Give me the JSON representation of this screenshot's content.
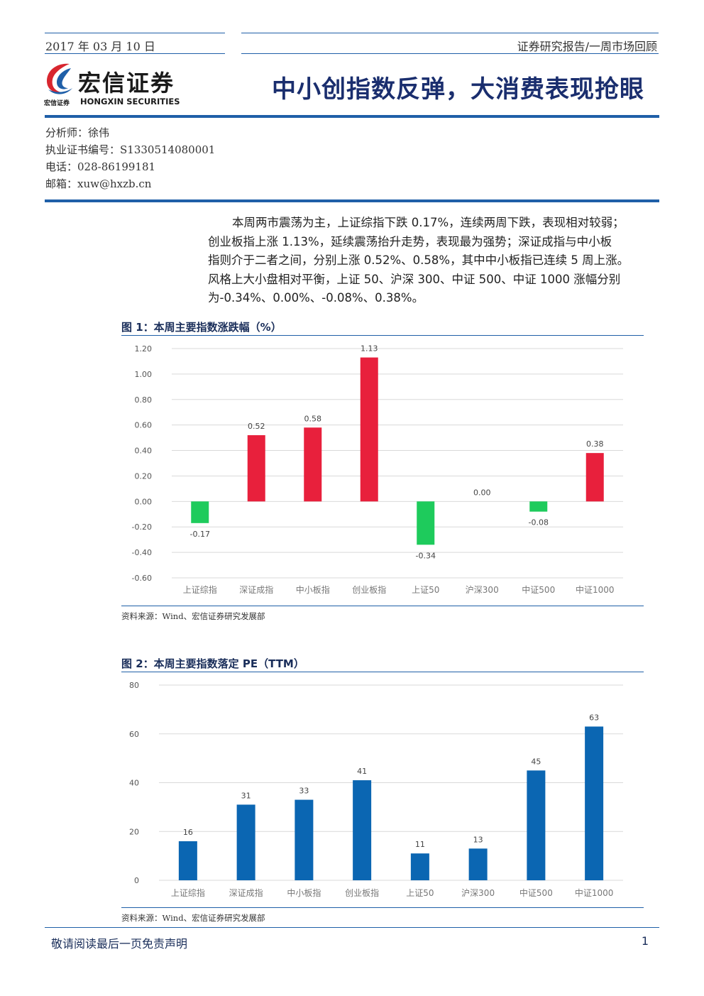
{
  "header": {
    "date": "2017 年 03 月 10 日",
    "report_type": "证券研究报告/一周市场回顾",
    "company_cn": "宏信证券",
    "company_en": "HONGXIN SECURITIES",
    "company_small": "宏信证券",
    "title": "中小创指数反弹，大消费表现抢眼"
  },
  "analyst": {
    "name": "分析师：徐伟",
    "license": "执业证书编号：S1330514080001",
    "phone": "电话：028-86199181",
    "email": "邮箱：xuw@hxzb.cn"
  },
  "summary_lines": [
    "本周两市震荡为主，上证综指下跌 0.17%，连续两周下跌，表现相对较弱；",
    "创业板指上涨 1.13%，延续震荡抬升走势，表现最为强势；深证成指与中小板",
    "指则介于二者之间，分别上涨 0.52%、0.58%，其中中小板指已连续 5 周上涨。",
    "风格上大小盘相对平衡，上证 50、沪深 300、中证 500、中证 1000 涨幅分别",
    "为-0.34%、0.00%、-0.08%、0.38%。"
  ],
  "figure1": {
    "title": "图 1：本周主要指数涨跌幅（%）",
    "source": "资料来源：Wind、宏信证券研究发展部"
  },
  "figure2": {
    "title": "图 2：本周主要指数落定 PE（TTM）",
    "source": "资料来源：Wind、宏信证券研究发展部"
  },
  "footer": {
    "disclaimer": "敬请阅读最后一页免责声明",
    "page": "1"
  },
  "colors": {
    "accent": "#1f5fa8",
    "positive": "#e8203c",
    "negative": "#1ecb5c",
    "pe_bar": "#0b66b2"
  },
  "chart_data": [
    {
      "type": "bar",
      "categories": [
        "上证综指",
        "深证成指",
        "中小板指",
        "创业板指",
        "上证50",
        "沪深300",
        "中证500",
        "中证1000"
      ],
      "values": [
        -0.17,
        0.52,
        0.58,
        1.13,
        -0.34,
        0.0,
        -0.08,
        0.38
      ],
      "data_labels": [
        "-0.17",
        "0.52",
        "0.58",
        "1.13",
        "-0.34",
        "0.00",
        "-0.08",
        "0.38"
      ],
      "yticks": [
        "1.20",
        "1.00",
        "0.80",
        "0.60",
        "0.40",
        "0.20",
        "0.00",
        "-0.20",
        "-0.40",
        "-0.60"
      ],
      "ytick_values": [
        1.2,
        1.0,
        0.8,
        0.6,
        0.4,
        0.2,
        0.0,
        -0.2,
        -0.4,
        -0.6
      ],
      "ylim": [
        -0.6,
        1.2
      ],
      "grid": true,
      "legend": "none"
    },
    {
      "type": "bar",
      "categories": [
        "上证综指",
        "深证成指",
        "中小板指",
        "创业板指",
        "上证50",
        "沪深300",
        "中证500",
        "中证1000"
      ],
      "values": [
        16,
        31,
        33,
        41,
        11,
        13,
        45,
        63
      ],
      "data_labels": [
        "16",
        "31",
        "33",
        "41",
        "11",
        "13",
        "45",
        "63"
      ],
      "yticks": [
        "80",
        "60",
        "40",
        "20",
        "0"
      ],
      "ytick_values": [
        80,
        60,
        40,
        20,
        0
      ],
      "ylim": [
        0,
        80
      ],
      "grid": true,
      "legend": "none"
    }
  ]
}
